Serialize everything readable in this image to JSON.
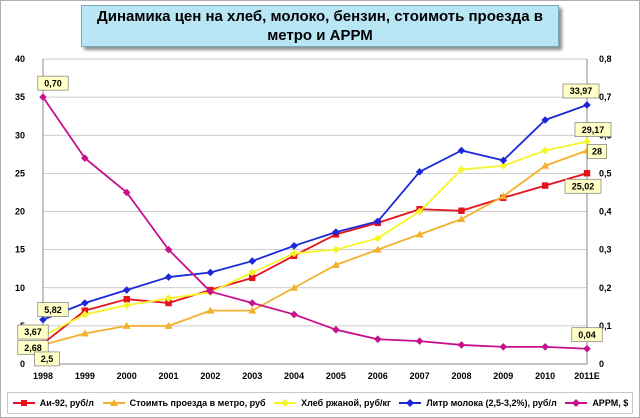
{
  "chart_data": {
    "type": "line",
    "title": "Динамика цен на хлеб, молоко, бензин, стоимоть проезда в метро и АРРМ",
    "categories": [
      "1998",
      "1999",
      "2000",
      "2001",
      "2002",
      "2003",
      "2004",
      "2005",
      "2006",
      "2007",
      "2008",
      "2009",
      "2010",
      "2011E"
    ],
    "y_left": {
      "min": 0,
      "max": 40,
      "step": 5,
      "ticks": [
        "0",
        "5",
        "10",
        "15",
        "20",
        "25",
        "30",
        "35",
        "40"
      ]
    },
    "y_right": {
      "min": 0,
      "max": 0.8,
      "step": 0.1,
      "ticks": [
        "0",
        "0,1",
        "0,2",
        "0,3",
        "0,4",
        "0,5",
        "0,6",
        "0,7",
        "0,8"
      ]
    },
    "grid": "horizontal",
    "legend_position": "bottom",
    "series": [
      {
        "name": "Аи-92,  руб/л",
        "axis": "left",
        "color": "#e8101a",
        "marker": "square",
        "values": [
          2.68,
          7,
          8.5,
          8,
          9.7,
          11.3,
          14.2,
          17,
          18.5,
          20.3,
          20.1,
          21.8,
          23.4,
          25.02
        ]
      },
      {
        "name": "Стоимть проезда в метро, руб",
        "axis": "left",
        "color": "#f2b12c",
        "marker": "triangle",
        "values": [
          2.5,
          4,
          5,
          5,
          7,
          7,
          10,
          13,
          15,
          17,
          19,
          22,
          26,
          28
        ]
      },
      {
        "name": "Хлеб ржаной, руб/кг",
        "axis": "left",
        "color": "#f5f52a",
        "marker": "diamond",
        "values": [
          3.67,
          6.5,
          7.7,
          8.6,
          9.4,
          12,
          14.5,
          15,
          16.5,
          20,
          25.5,
          26,
          28,
          29.17
        ]
      },
      {
        "name": "Литр молока (2,5-3,2%), руб/л",
        "axis": "left",
        "color": "#1c28d8",
        "marker": "diamond",
        "values": [
          5.82,
          8,
          9.7,
          11.4,
          12,
          13.5,
          15.5,
          17.3,
          18.7,
          25.2,
          28,
          26.7,
          32,
          33.97
        ]
      },
      {
        "name": "АРРМ, $",
        "axis": "right",
        "color": "#c8108c",
        "marker": "diamond",
        "values": [
          0.7,
          0.54,
          0.45,
          0.3,
          0.19,
          0.16,
          0.13,
          0.09,
          0.065,
          0.06,
          0.05,
          0.045,
          0.045,
          0.04
        ]
      }
    ],
    "annotations": [
      {
        "label": "0,70",
        "series": 4,
        "index": 0
      },
      {
        "label": "5,82",
        "series": 3,
        "index": 0
      },
      {
        "label": "3,67",
        "series": 2,
        "index": 0
      },
      {
        "label": "2,68",
        "series": 0,
        "index": 0
      },
      {
        "label": "2,5",
        "series": 1,
        "index": 0
      },
      {
        "label": "33,97",
        "series": 3,
        "index": 13
      },
      {
        "label": "29,17",
        "series": 2,
        "index": 13
      },
      {
        "label": "28",
        "series": 1,
        "index": 13
      },
      {
        "label": "25,02",
        "series": 0,
        "index": 13
      },
      {
        "label": "0,04",
        "series": 4,
        "index": 13
      }
    ],
    "callout_fill": "#ffffc6"
  }
}
